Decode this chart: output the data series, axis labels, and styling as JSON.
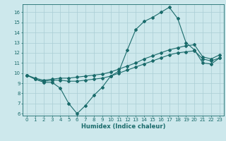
{
  "title": "",
  "xlabel": "Humidex (Indice chaleur)",
  "xlim": [
    -0.5,
    23.5
  ],
  "ylim": [
    5.8,
    16.8
  ],
  "yticks": [
    6,
    7,
    8,
    9,
    10,
    11,
    12,
    13,
    14,
    15,
    16
  ],
  "xticks": [
    0,
    1,
    2,
    3,
    4,
    5,
    6,
    7,
    8,
    9,
    10,
    11,
    12,
    13,
    14,
    15,
    16,
    17,
    18,
    19,
    20,
    21,
    22,
    23
  ],
  "bg_color": "#cde8ec",
  "grid_color": "#aacdd4",
  "line_color": "#1a6b6b",
  "line1_y": [
    9.8,
    9.4,
    9.1,
    9.1,
    8.5,
    7.0,
    6.0,
    6.8,
    7.8,
    8.6,
    9.7,
    10.2,
    12.3,
    14.3,
    15.1,
    15.5,
    16.0,
    16.5,
    15.4,
    13.0,
    12.3,
    11.0,
    10.9,
    11.5
  ],
  "line2_y": [
    9.8,
    9.4,
    9.2,
    9.3,
    9.3,
    9.2,
    9.2,
    9.3,
    9.4,
    9.5,
    9.7,
    10.0,
    10.3,
    10.6,
    10.9,
    11.2,
    11.5,
    11.8,
    12.0,
    12.1,
    12.2,
    11.4,
    11.2,
    11.5
  ],
  "line3_y": [
    9.8,
    9.5,
    9.3,
    9.4,
    9.5,
    9.5,
    9.6,
    9.7,
    9.8,
    9.9,
    10.1,
    10.4,
    10.7,
    11.0,
    11.4,
    11.7,
    12.0,
    12.3,
    12.5,
    12.7,
    12.8,
    11.6,
    11.4,
    11.8
  ],
  "xlabel_fontsize": 6.0,
  "tick_fontsize": 5.0,
  "marker_size": 2.0,
  "linewidth": 0.8
}
